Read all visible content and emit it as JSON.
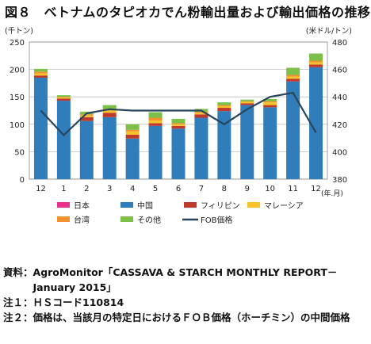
{
  "title": "図８　ベトナムのタピオカでん粉輸出量および輸出価格の推移",
  "chart_data": {
    "type": "bar",
    "stacked": true,
    "left_axis_unit": "(千トン)",
    "right_axis_unit": "(米ドル/トン)",
    "x_unit": "(年.月)",
    "categories": [
      "12",
      "1",
      "2",
      "3",
      "4",
      "5",
      "6",
      "7",
      "8",
      "9",
      "10",
      "11",
      "12"
    ],
    "ylim": [
      0,
      250
    ],
    "yticks": [
      0,
      50,
      100,
      150,
      200,
      250
    ],
    "ylim_right": [
      380,
      480
    ],
    "yticks_right": [
      380,
      400,
      420,
      440,
      460,
      480
    ],
    "grid": true,
    "legend_position": "bottom",
    "series": [
      {
        "name": "日本",
        "color": "#e8308e",
        "values": [
          0,
          0,
          0,
          0,
          0,
          0,
          0,
          0,
          0,
          0,
          0,
          0,
          0
        ]
      },
      {
        "name": "中国",
        "color": "#2f7dbb",
        "values": [
          185,
          143,
          106,
          113,
          74,
          97,
          92,
          112,
          124,
          135,
          131,
          178,
          204
        ]
      },
      {
        "name": "フィリピン",
        "color": "#c0392b",
        "values": [
          4,
          4,
          7,
          8,
          7,
          5,
          5,
          6,
          6,
          3,
          4,
          5,
          5
        ]
      },
      {
        "name": "マレーシア",
        "color": "#f6c228",
        "values": [
          4,
          2,
          3,
          4,
          6,
          5,
          3,
          3,
          3,
          3,
          5,
          4,
          4
        ]
      },
      {
        "name": "台湾",
        "color": "#f0922b",
        "values": [
          3,
          1,
          2,
          3,
          3,
          5,
          2,
          2,
          2,
          1,
          2,
          3,
          3
        ]
      },
      {
        "name": "その他",
        "color": "#7cc04a",
        "values": [
          5,
          3,
          5,
          7,
          10,
          10,
          8,
          5,
          5,
          3,
          4,
          13,
          13
        ]
      }
    ],
    "line": {
      "name": "FOB価格",
      "color": "#27455c",
      "axis": "right",
      "values": [
        430,
        412,
        428,
        431,
        430,
        430,
        430,
        430,
        420,
        431,
        440,
        443,
        414
      ]
    }
  },
  "notes": [
    {
      "label": "資料：",
      "text": "AgroMonitor「CASSAVA & STARCH MONTHLY REPORT－January 2015」"
    },
    {
      "label": "注１：",
      "text": "ＨＳコード110814"
    },
    {
      "label": "注２：",
      "text": "価格は、当該月の特定日におけるＦＯＢ価格（ホーチミン）の中間価格"
    }
  ]
}
